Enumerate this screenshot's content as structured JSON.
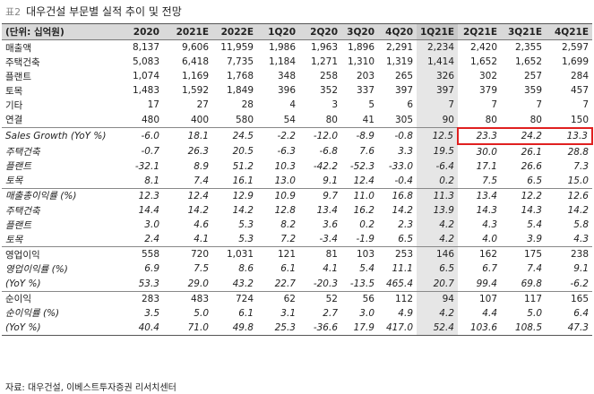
{
  "header": {
    "tag": "표2",
    "title": "대우건설 부문별 실적 추이 및 전망"
  },
  "table": {
    "columns": [
      "(단위: 십억원)",
      "2020",
      "2021E",
      "2022E",
      "1Q20",
      "2Q20",
      "3Q20",
      "4Q20",
      "1Q21E",
      "2Q21E",
      "3Q21E",
      "4Q21E"
    ],
    "rows": [
      [
        "매출액",
        "8,137",
        "9,606",
        "11,959",
        "1,986",
        "1,963",
        "1,896",
        "2,291",
        "2,234",
        "2,420",
        "2,355",
        "2,597"
      ],
      [
        "주택건축",
        "5,083",
        "6,418",
        "7,735",
        "1,184",
        "1,271",
        "1,310",
        "1,319",
        "1,414",
        "1,652",
        "1,652",
        "1,699"
      ],
      [
        "플랜트",
        "1,074",
        "1,169",
        "1,768",
        "348",
        "258",
        "203",
        "265",
        "326",
        "302",
        "257",
        "284"
      ],
      [
        "토목",
        "1,483",
        "1,592",
        "1,849",
        "396",
        "352",
        "337",
        "397",
        "397",
        "379",
        "359",
        "457"
      ],
      [
        "기타",
        "17",
        "27",
        "28",
        "4",
        "3",
        "5",
        "6",
        "7",
        "7",
        "7",
        "7"
      ],
      [
        "연결",
        "480",
        "400",
        "580",
        "54",
        "80",
        "41",
        "305",
        "90",
        "80",
        "80",
        "150"
      ],
      [
        "Sales Growth (YoY %)",
        "-6.0",
        "18.1",
        "24.5",
        "-2.2",
        "-12.0",
        "-8.9",
        "-0.8",
        "12.5",
        "23.3",
        "24.2",
        "13.3"
      ],
      [
        "주택건축",
        "-0.7",
        "26.3",
        "20.5",
        "-6.3",
        "-6.8",
        "7.6",
        "3.3",
        "19.5",
        "30.0",
        "26.1",
        "28.8"
      ],
      [
        "플랜트",
        "-32.1",
        "8.9",
        "51.2",
        "10.3",
        "-42.2",
        "-52.3",
        "-33.0",
        "-6.4",
        "17.1",
        "26.6",
        "7.3"
      ],
      [
        "토목",
        "8.1",
        "7.4",
        "16.1",
        "13.0",
        "9.1",
        "12.4",
        "-0.4",
        "0.2",
        "7.5",
        "6.5",
        "15.0"
      ],
      [
        "매출총이익률 (%)",
        "12.3",
        "12.4",
        "12.9",
        "10.9",
        "9.7",
        "11.0",
        "16.8",
        "11.3",
        "13.4",
        "12.2",
        "12.6"
      ],
      [
        "주택건축",
        "14.4",
        "14.2",
        "14.2",
        "12.8",
        "13.4",
        "16.2",
        "14.2",
        "13.9",
        "14.3",
        "14.3",
        "14.2"
      ],
      [
        "플랜트",
        "3.0",
        "4.6",
        "5.3",
        "8.2",
        "3.6",
        "0.2",
        "2.3",
        "4.2",
        "4.3",
        "5.4",
        "5.8"
      ],
      [
        "토목",
        "2.4",
        "4.1",
        "5.3",
        "7.2",
        "-3.4",
        "-1.9",
        "6.5",
        "4.2",
        "4.0",
        "3.9",
        "4.3"
      ],
      [
        "영업이익",
        "558",
        "720",
        "1,031",
        "121",
        "81",
        "103",
        "253",
        "146",
        "162",
        "175",
        "238"
      ],
      [
        "영업이익률 (%)",
        "6.9",
        "7.5",
        "8.6",
        "6.1",
        "4.1",
        "5.4",
        "11.1",
        "6.5",
        "6.7",
        "7.4",
        "9.1"
      ],
      [
        "(YoY %)",
        "53.3",
        "29.0",
        "43.2",
        "22.7",
        "-20.3",
        "-13.5",
        "465.4",
        "20.7",
        "99.4",
        "69.8",
        "-6.2"
      ],
      [
        "순이익",
        "283",
        "483",
        "724",
        "62",
        "52",
        "56",
        "112",
        "94",
        "107",
        "117",
        "165"
      ],
      [
        "순이익률 (%)",
        "3.5",
        "5.0",
        "6.1",
        "3.1",
        "2.7",
        "3.0",
        "4.9",
        "4.2",
        "4.4",
        "5.0",
        "6.4"
      ],
      [
        "(YoY %)",
        "40.4",
        "71.0",
        "49.8",
        "25.3",
        "-36.6",
        "17.9",
        "417.0",
        "52.4",
        "103.6",
        "108.5",
        "47.3"
      ]
    ]
  },
  "source": "자료: 대우건설, 이베스트투자증권 리서치센터"
}
